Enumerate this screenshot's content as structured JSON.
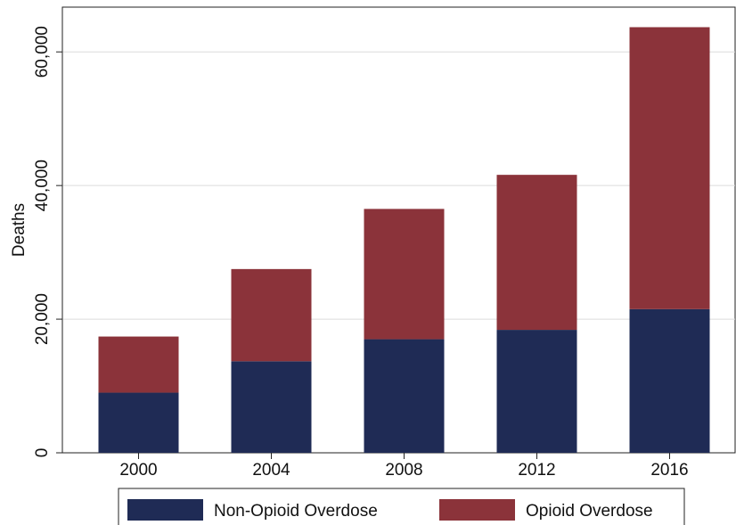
{
  "chart_data": {
    "type": "stacked_bar",
    "y_label": "Deaths",
    "categories": [
      "2000",
      "2004",
      "2008",
      "2012",
      "2016"
    ],
    "series": [
      {
        "name": "Non-Opioid Overdose",
        "color": "#1f2b55",
        "values": [
          9000,
          13700,
          17000,
          18400,
          21500
        ]
      },
      {
        "name": "Opioid Overdose",
        "color": "#8b333a",
        "values": [
          8400,
          13800,
          19500,
          23200,
          42200
        ]
      }
    ],
    "ylim": [
      0,
      66700
    ],
    "yticks": [
      0,
      {
        "value": 20000,
        "label": "20,000"
      },
      {
        "value": 40000,
        "label": "40,000"
      },
      {
        "value": 60000,
        "label": "60,000"
      }
    ],
    "grid": true
  }
}
